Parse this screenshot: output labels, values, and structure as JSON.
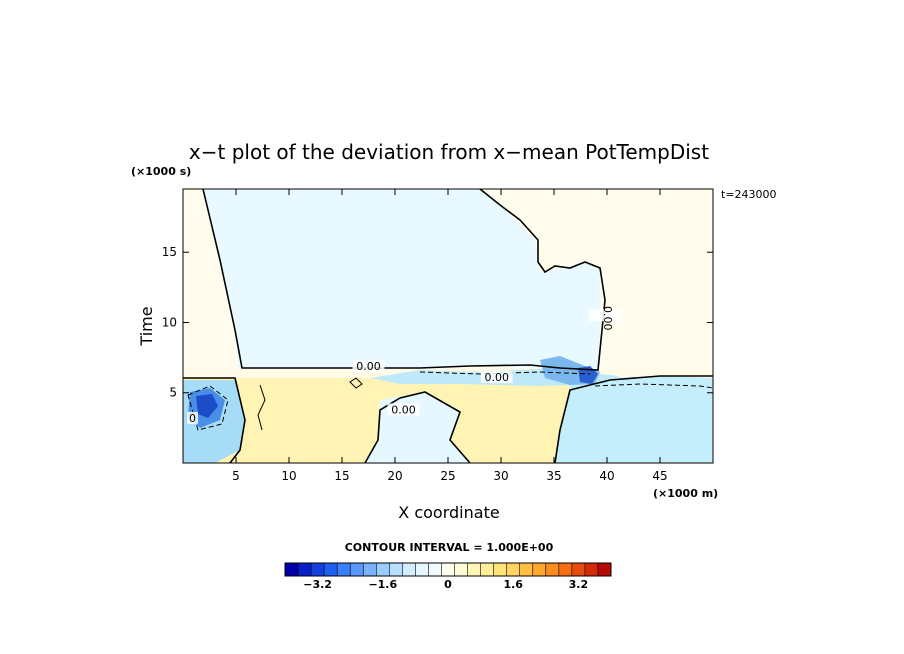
{
  "chart_data": {
    "type": "heatmap",
    "title": "x−t plot of the deviation from x−mean PotTempDist",
    "xlabel": "X coordinate",
    "ylabel": "Time",
    "x_unit": "(×1000 m)",
    "y_unit": "(×1000 s)",
    "annotation": "t=243000",
    "xlim": [
      0,
      50
    ],
    "ylim": [
      0,
      19.5
    ],
    "x_ticks": [
      5,
      10,
      15,
      20,
      25,
      30,
      35,
      40,
      45
    ],
    "y_ticks": [
      5,
      10,
      15
    ],
    "contour_interval_label": "CONTOUR INTERVAL = 1.000E+00",
    "contour_labels": [
      {
        "text": "0.00",
        "x": 17.5,
        "y": 6.7
      },
      {
        "text": "0.00",
        "x": 29.6,
        "y": 5.9
      },
      {
        "text": "0.00",
        "x": 20.8,
        "y": 3.6
      },
      {
        "text": "0.00",
        "x": 39.8,
        "y": 10.3
      },
      {
        "text": "0",
        "x": 0.9,
        "y": 3.0
      }
    ],
    "colorbar": {
      "min": -4.0,
      "max": 4.0,
      "tick_values": [
        -3.2,
        -1.6,
        0,
        1.6,
        3.2
      ],
      "tick_labels": [
        "−3.2",
        "−1.6",
        "0",
        "1.6",
        "3.2"
      ],
      "colors": [
        "#0000aa",
        "#0a1ec8",
        "#1440e0",
        "#2060f0",
        "#3a7ef8",
        "#5a98fa",
        "#7ab2fc",
        "#9accfd",
        "#b8e0fe",
        "#d2eefe",
        "#e6f8ff",
        "#f2fcff",
        "#fffff0",
        "#fffcd8",
        "#fff6b8",
        "#ffef98",
        "#ffe47a",
        "#ffd460",
        "#ffc044",
        "#ffa830",
        "#ff8c20",
        "#f86c14",
        "#e84c0c",
        "#d42a06",
        "#b80a04"
      ]
    }
  }
}
